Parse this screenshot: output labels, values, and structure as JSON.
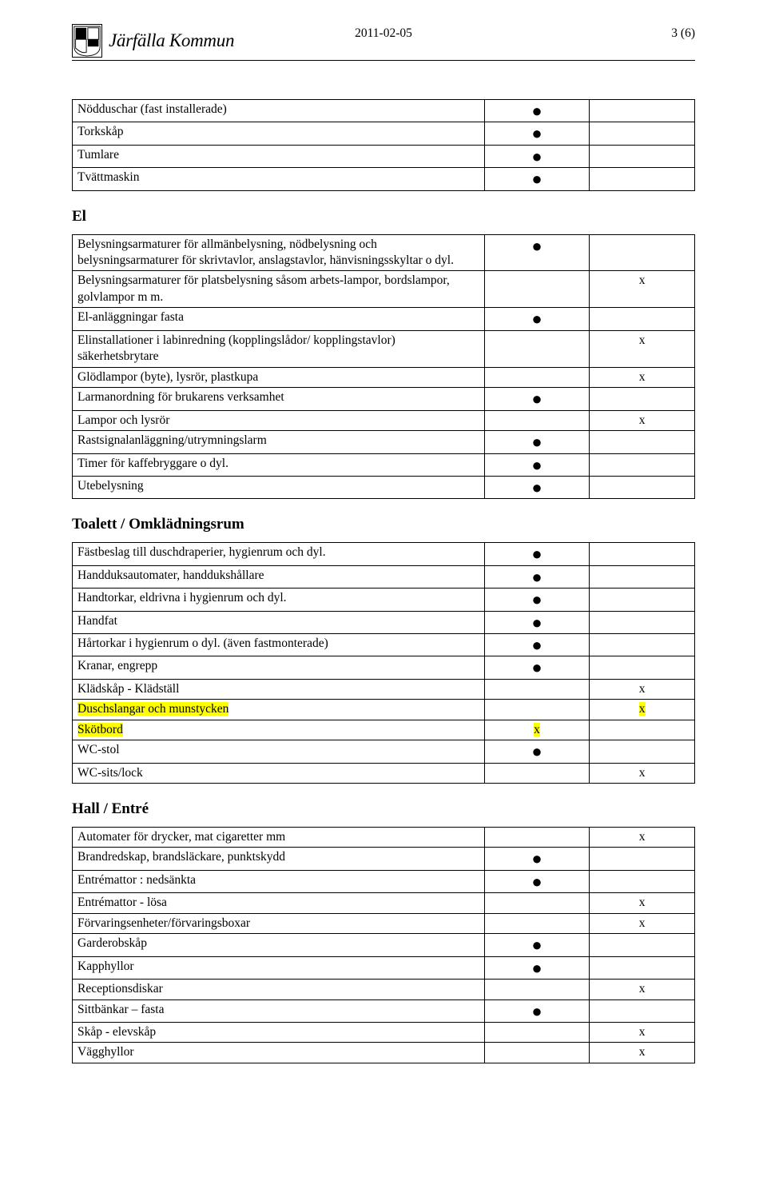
{
  "header": {
    "brand": "Järfälla Kommun",
    "date": "2011-02-05",
    "page_label": "3 (6)"
  },
  "sections": {
    "top_rows": [
      {
        "desc": "Nödduschar (fast installerade)",
        "a": "●",
        "b": ""
      },
      {
        "desc": "Torkskåp",
        "a": "●",
        "b": ""
      },
      {
        "desc": "Tumlare",
        "a": "●",
        "b": ""
      },
      {
        "desc": "Tvättmaskin",
        "a": "●",
        "b": ""
      }
    ],
    "el": {
      "title": "El",
      "rows": [
        {
          "desc": "Belysningsarmaturer för allmänbelysning, nödbelysning och belysningsarmaturer för skrivtavlor, anslagstavlor, hänvisningsskyltar o dyl.",
          "a": "●",
          "b": ""
        },
        {
          "desc": "Belysningsarmaturer för platsbelysning såsom arbets-lampor, bordslampor, golvlampor m m.",
          "a": "",
          "b": "x"
        },
        {
          "desc": "El-anläggningar fasta",
          "a": "●",
          "b": ""
        },
        {
          "desc": "Elinstallationer i labinredning (kopplingslådor/ kopplingstavlor) säkerhetsbrytare",
          "a": "",
          "b": "x"
        },
        {
          "desc": "Glödlampor (byte), lysrör, plastkupa",
          "a": "",
          "b": "x"
        },
        {
          "desc": "Larmanordning för brukarens verksamhet",
          "a": "●",
          "b": ""
        },
        {
          "desc": "Lampor och lysrör",
          "a": "",
          "b": "x"
        },
        {
          "desc": "Rastsignalanläggning/utrymningslarm",
          "a": "●",
          "b": ""
        },
        {
          "desc": "Timer för kaffebryggare o dyl.",
          "a": "●",
          "b": ""
        },
        {
          "desc": "Utebelysning",
          "a": "●",
          "b": ""
        }
      ]
    },
    "toalett": {
      "title": "Toalett / Omklädningsrum",
      "rows": [
        {
          "desc": "Fästbeslag till duschdraperier, hygienrum och dyl.",
          "a": "●",
          "b": ""
        },
        {
          "desc": "Handduksautomater, handdukshållare",
          "a": "●",
          "b": ""
        },
        {
          "desc": "Handtorkar, eldrivna i hygienrum och dyl.",
          "a": "●",
          "b": ""
        },
        {
          "desc": "Handfat",
          "a": "●",
          "b": ""
        },
        {
          "desc": "Hårtorkar i hygienrum o dyl. (även fastmonterade)",
          "a": "●",
          "b": ""
        },
        {
          "desc": "Kranar, engrepp",
          "a": "●",
          "b": ""
        },
        {
          "desc": "Klädskåp - Klädställ",
          "a": "",
          "b": "x"
        },
        {
          "desc": "Duschslangar och munstycken",
          "a": "",
          "b": "x",
          "highlight": true
        },
        {
          "desc": "Skötbord",
          "a": "x",
          "b": "",
          "highlight": true
        },
        {
          "desc": "WC-stol",
          "a": "●",
          "b": ""
        },
        {
          "desc": "WC-sits/lock",
          "a": "",
          "b": "x"
        }
      ]
    },
    "hall": {
      "title": "Hall / Entré",
      "rows": [
        {
          "desc": "Automater för drycker, mat cigaretter mm",
          "a": "",
          "b": "x"
        },
        {
          "desc": "Brandredskap, brandsläckare, punktskydd",
          "a": "●",
          "b": ""
        },
        {
          "desc": "Entrémattor : nedsänkta",
          "a": "●",
          "b": ""
        },
        {
          "desc": "Entrémattor - lösa",
          "a": "",
          "b": "x"
        },
        {
          "desc": "Förvaringsenheter/förvaringsboxar",
          "a": "",
          "b": "x"
        },
        {
          "desc": "Garderobskåp",
          "a": "●",
          "b": ""
        },
        {
          "desc": "Kapphyllor",
          "a": "●",
          "b": ""
        },
        {
          "desc": "Receptionsdiskar",
          "a": "",
          "b": "x"
        },
        {
          "desc": "Sittbänkar – fasta",
          "a": "●",
          "b": ""
        },
        {
          "desc": "Skåp - elevskåp",
          "a": "",
          "b": "x"
        },
        {
          "desc": "Vägghyllor",
          "a": "",
          "b": "x"
        }
      ]
    }
  }
}
